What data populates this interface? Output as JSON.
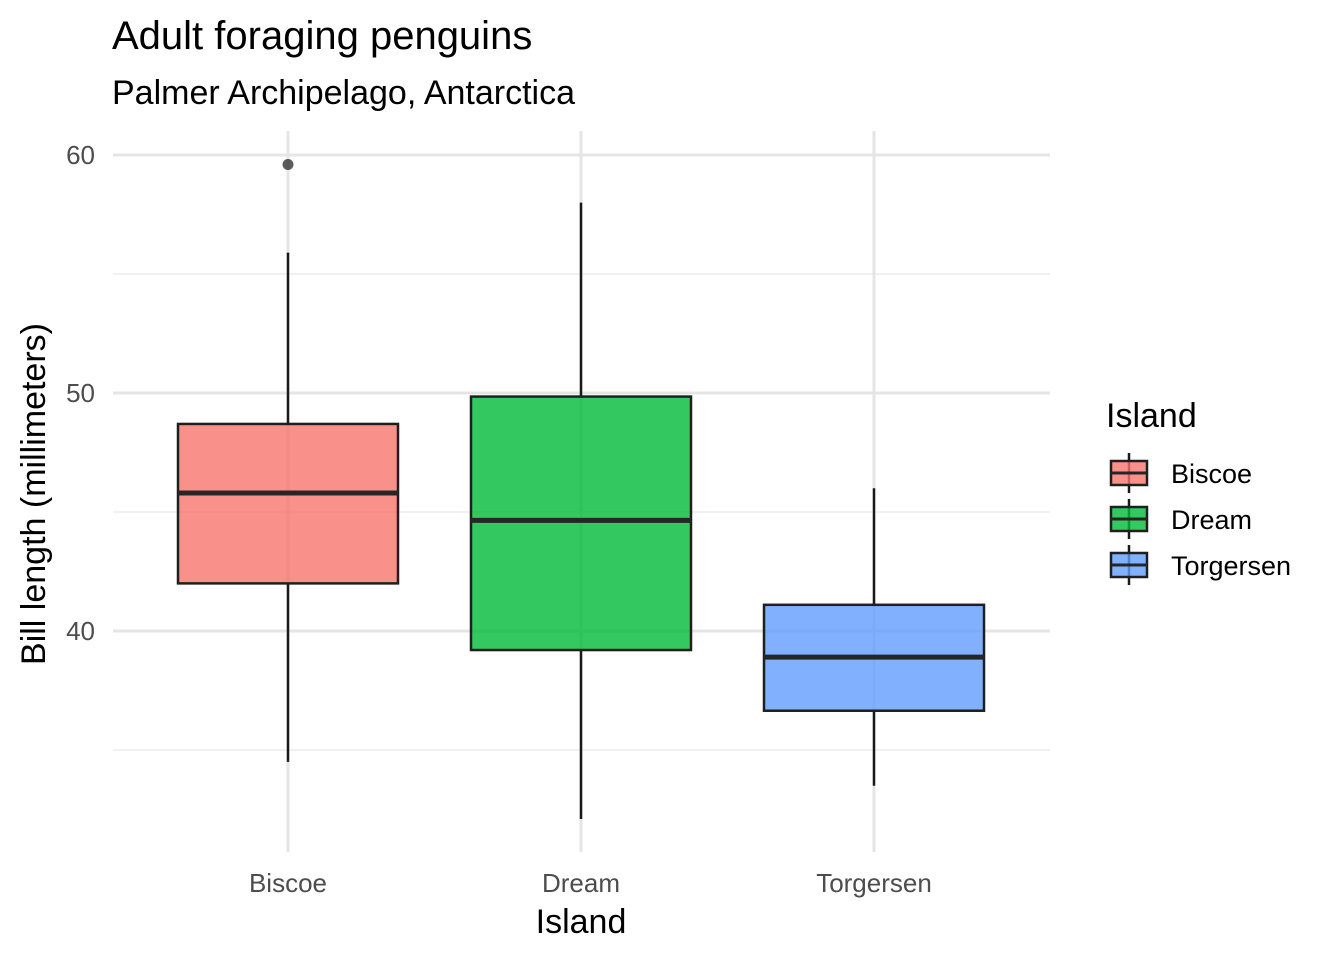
{
  "chart_data": {
    "type": "box",
    "title": "Adult foraging penguins",
    "subtitle": "Palmer Archipelago, Antarctica",
    "xlabel": "Island",
    "ylabel": "Bill length (millimeters)",
    "categories": [
      "Biscoe",
      "Dream",
      "Torgersen"
    ],
    "ylim": [
      31.5,
      61
    ],
    "yticks": [
      40,
      50,
      60
    ],
    "y_minor_ticks": [
      35,
      45,
      55
    ],
    "grid": true,
    "legend": {
      "title": "Island",
      "position": "right",
      "entries": [
        "Biscoe",
        "Dream",
        "Torgersen"
      ]
    },
    "series": [
      {
        "name": "Biscoe",
        "color": "#F8766D",
        "whisker_low": 34.5,
        "q1": 42.0,
        "median": 45.8,
        "q3": 48.7,
        "whisker_high": 55.9,
        "outliers": [
          59.6
        ]
      },
      {
        "name": "Dream",
        "color": "#00BA38",
        "whisker_low": 32.1,
        "q1": 39.2,
        "median": 44.65,
        "q3": 49.85,
        "whisker_high": 58.0,
        "outliers": []
      },
      {
        "name": "Torgersen",
        "color": "#619CFF",
        "whisker_low": 33.5,
        "q1": 36.65,
        "median": 38.9,
        "q3": 41.1,
        "whisker_high": 46.0,
        "outliers": []
      }
    ]
  }
}
